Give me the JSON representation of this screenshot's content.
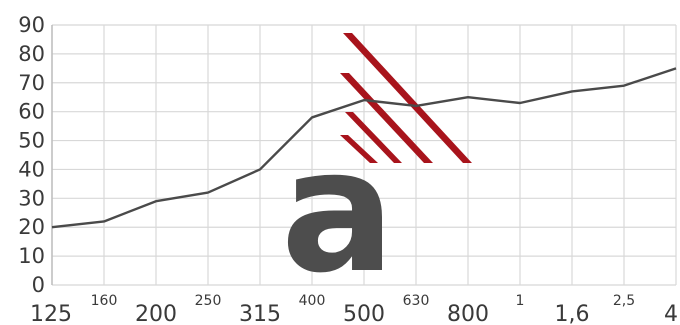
{
  "chart_data": {
    "type": "line",
    "title": "",
    "xlabel": "",
    "ylabel": "",
    "ylim": [
      0,
      90
    ],
    "yticks": [
      0,
      10,
      20,
      30,
      40,
      50,
      60,
      70,
      80,
      90
    ],
    "xticks": [
      "125",
      "160",
      "200",
      "250",
      "315",
      "400",
      "500",
      "630",
      "800",
      "1",
      "1,6",
      "2,5",
      "4"
    ],
    "grid": true,
    "series": [
      {
        "x": [
          "125",
          "160",
          "200",
          "250",
          "315",
          "400",
          "500",
          "630",
          "800",
          "1",
          "1,6",
          "2,5",
          "4"
        ],
        "values": [
          20,
          22,
          29,
          32,
          40,
          58,
          64,
          62,
          65,
          63,
          67,
          69,
          75
        ]
      }
    ],
    "logo": {
      "letter": "a"
    },
    "colors": {
      "line": "#4a4a4a",
      "grid": "#d8d8d8",
      "logo_dark": "#4d4d4d",
      "logo_red": "#a8141c"
    }
  }
}
